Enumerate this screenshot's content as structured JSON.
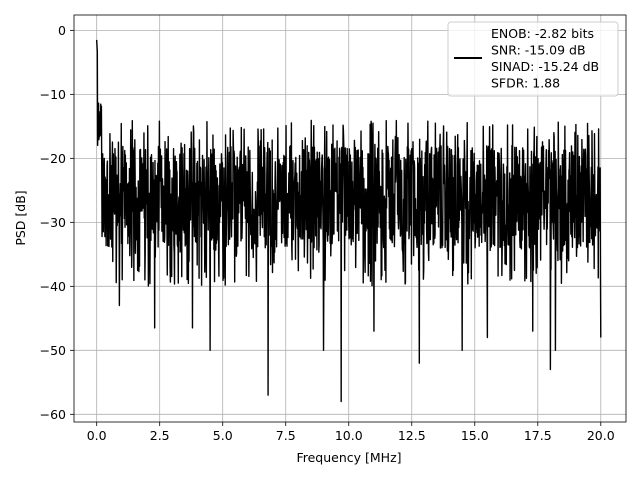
{
  "chart_data": {
    "type": "line",
    "xlabel": "Frequency [MHz]",
    "ylabel": "PSD [dB]",
    "xlim": [
      -0.9,
      21.0
    ],
    "ylim": [
      -61.2,
      2.4
    ],
    "xticks": [
      0.0,
      2.5,
      5.0,
      7.5,
      10.0,
      12.5,
      15.0,
      17.5,
      20.0
    ],
    "xtick_labels": [
      "0.0",
      "2.5",
      "5.0",
      "7.5",
      "10.0",
      "12.5",
      "15.0",
      "17.5",
      "20.0"
    ],
    "yticks": [
      0,
      -10,
      -20,
      -30,
      -40,
      -50,
      -60
    ],
    "ytick_labels": [
      "0",
      "−10",
      "−20",
      "−30",
      "−40",
      "−50",
      "−60"
    ],
    "grid": true,
    "legend_position": "top-right",
    "legend_lines": [
      "ENOB: -2.82 bits",
      "SNR: -15.09 dB",
      "SINAD: -15.24 dB",
      "SFDR: 1.88"
    ],
    "series": [
      {
        "color": "#000000",
        "x_start": 0.0,
        "x_end": 20.0,
        "peak": {
          "x": 0.0,
          "y": -1.5
        },
        "noise_floor_mean": -26,
        "noise_upper_envelope": -17,
        "noise_lower_envelope": -40,
        "notable_dips": [
          {
            "x": 0.9,
            "y": -43
          },
          {
            "x": 2.3,
            "y": -46.5
          },
          {
            "x": 3.8,
            "y": -46.5
          },
          {
            "x": 4.5,
            "y": -50
          },
          {
            "x": 6.8,
            "y": -57
          },
          {
            "x": 9.0,
            "y": -50
          },
          {
            "x": 9.7,
            "y": -58
          },
          {
            "x": 11.0,
            "y": -47
          },
          {
            "x": 12.8,
            "y": -52
          },
          {
            "x": 14.5,
            "y": -50
          },
          {
            "x": 15.5,
            "y": -48
          },
          {
            "x": 17.3,
            "y": -47
          },
          {
            "x": 18.0,
            "y": -53
          },
          {
            "x": 18.2,
            "y": -50
          },
          {
            "x": 20.0,
            "y": -48
          }
        ]
      }
    ]
  }
}
